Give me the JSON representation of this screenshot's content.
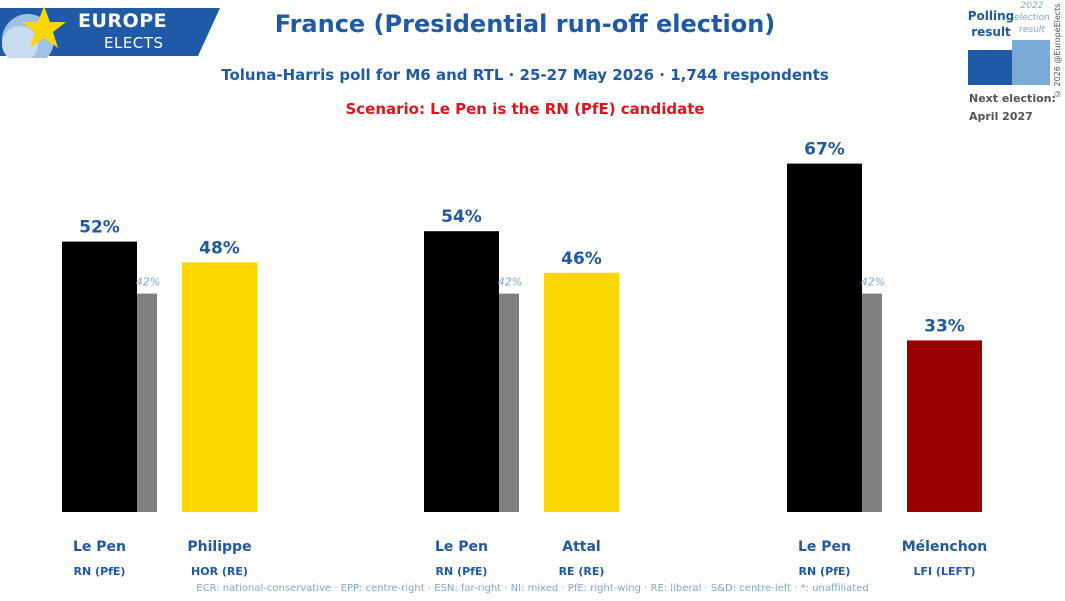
{
  "header": {
    "logo_line1": "EUROPE",
    "logo_line2": "ELECTS",
    "title": "France (Presidential run-off election)",
    "subtitle": "Toluna-Harris poll for M6 and RTL · 25-27 May 2026 · 1,744 respondents",
    "scenario": "Scenario: Le Pen is the RN (PfE) candidate"
  },
  "legend": {
    "polling_label": "Polling result",
    "previous_label": "2022 election result",
    "copyright": "© 2026 @EuropeElects",
    "next_election_label": "Next election:",
    "next_election_date": "April 2027"
  },
  "footnote": "ECR: national-conservative · EPP: centre-right · ESN: far-right · NI: mixed · PfE: right-wing · RE: liberal · S&D: centre-left · *: unaffiliated",
  "colors": {
    "brand_blue": "#1f5aa6",
    "light_blue": "#7aaad6",
    "scenario_red": "#e0141c",
    "previous_bar": "#808080"
  },
  "chart_data": {
    "type": "bar",
    "unit": "%",
    "groups": [
      {
        "candidates": [
          {
            "name": "Le Pen",
            "party": "RN (PfE)",
            "value": 52,
            "label": "52%",
            "previous": 42,
            "previous_label": "42%",
            "color": "#000000"
          },
          {
            "name": "Philippe",
            "party": "HOR (RE)",
            "value": 48,
            "label": "48%",
            "color": "#ffd700"
          }
        ]
      },
      {
        "candidates": [
          {
            "name": "Le Pen",
            "party": "RN (PfE)",
            "value": 54,
            "label": "54%",
            "previous": 42,
            "previous_label": "42%",
            "color": "#000000"
          },
          {
            "name": "Attal",
            "party": "RE (RE)",
            "value": 46,
            "label": "46%",
            "color": "#ffd700"
          }
        ]
      },
      {
        "candidates": [
          {
            "name": "Le Pen",
            "party": "RN (PfE)",
            "value": 67,
            "label": "67%",
            "previous": 42,
            "previous_label": "42%",
            "color": "#000000"
          },
          {
            "name": "Mélenchon",
            "party": "LFI (LEFT)",
            "value": 33,
            "label": "33%",
            "color": "#990000"
          }
        ]
      }
    ]
  }
}
